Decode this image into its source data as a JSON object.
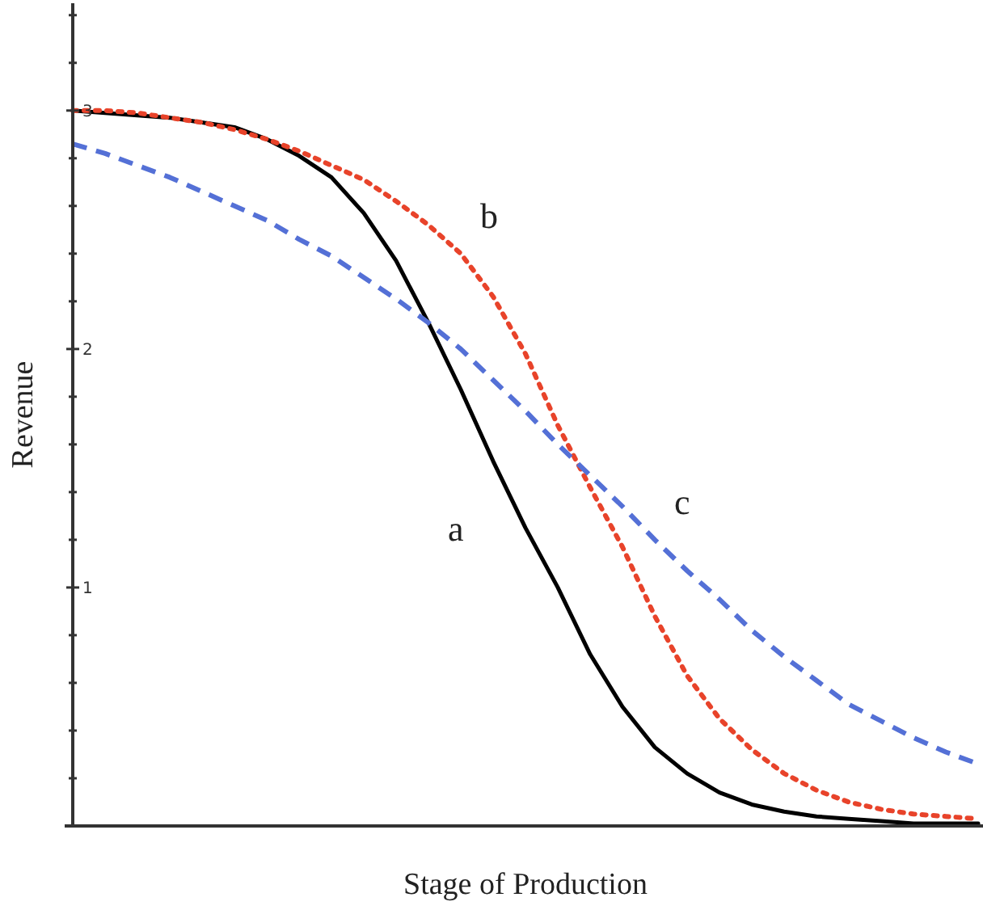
{
  "chart_data": {
    "type": "line",
    "xlabel": "Stage of Production",
    "ylabel": "Revenue",
    "categories": [
      null,
      null,
      null,
      null,
      null,
      null,
      null,
      null,
      null,
      null,
      null,
      null,
      null,
      null,
      null,
      null,
      null,
      null,
      null,
      null,
      null,
      null,
      null,
      null,
      null,
      null,
      null,
      null,
      null
    ],
    "ylim": [
      0,
      3.45
    ],
    "yticks": [
      {
        "value": 0.2,
        "label": null
      },
      {
        "value": 0.4,
        "label": null
      },
      {
        "value": 0.6,
        "label": null
      },
      {
        "value": 0.8,
        "label": null
      },
      1,
      {
        "value": 1.2,
        "label": null
      },
      {
        "value": 1.4,
        "label": null
      },
      {
        "value": 1.6,
        "label": null
      },
      {
        "value": 1.8,
        "label": null
      },
      2,
      {
        "value": 2.2,
        "label": null
      },
      {
        "value": 2.4,
        "label": null
      },
      {
        "value": 2.6,
        "label": null
      },
      {
        "value": 2.8,
        "label": null
      },
      3,
      {
        "value": 3.2,
        "label": null
      },
      {
        "value": 3.4,
        "label": null
      }
    ],
    "grid": false,
    "series": [
      {
        "name": "a",
        "color": "#000000",
        "line_style": "solid",
        "values": [
          3.0,
          2.99,
          2.98,
          2.97,
          2.95,
          2.93,
          2.88,
          2.81,
          2.72,
          2.57,
          2.37,
          2.11,
          1.83,
          1.53,
          1.25,
          1.0,
          0.72,
          0.5,
          0.33,
          0.22,
          0.14,
          0.09,
          0.06,
          0.04,
          0.03,
          0.02,
          0.01,
          0.01,
          0.01
        ]
      },
      {
        "name": "b",
        "color": "#e8432a",
        "line_style": "dotted",
        "values": [
          3.0,
          3.0,
          2.99,
          2.97,
          2.95,
          2.92,
          2.88,
          2.83,
          2.77,
          2.71,
          2.62,
          2.52,
          2.4,
          2.22,
          1.98,
          1.68,
          1.42,
          1.17,
          0.88,
          0.63,
          0.45,
          0.32,
          0.22,
          0.15,
          0.1,
          0.07,
          0.05,
          0.04,
          0.03
        ]
      },
      {
        "name": "c",
        "color": "#5470d6",
        "line_style": "dashed",
        "values": [
          2.86,
          2.82,
          2.77,
          2.72,
          2.66,
          2.6,
          2.54,
          2.46,
          2.39,
          2.3,
          2.21,
          2.11,
          2.0,
          1.87,
          1.74,
          1.6,
          1.47,
          1.34,
          1.2,
          1.07,
          0.95,
          0.82,
          0.71,
          0.61,
          0.51,
          0.44,
          0.37,
          0.31,
          0.26
        ]
      }
    ]
  }
}
